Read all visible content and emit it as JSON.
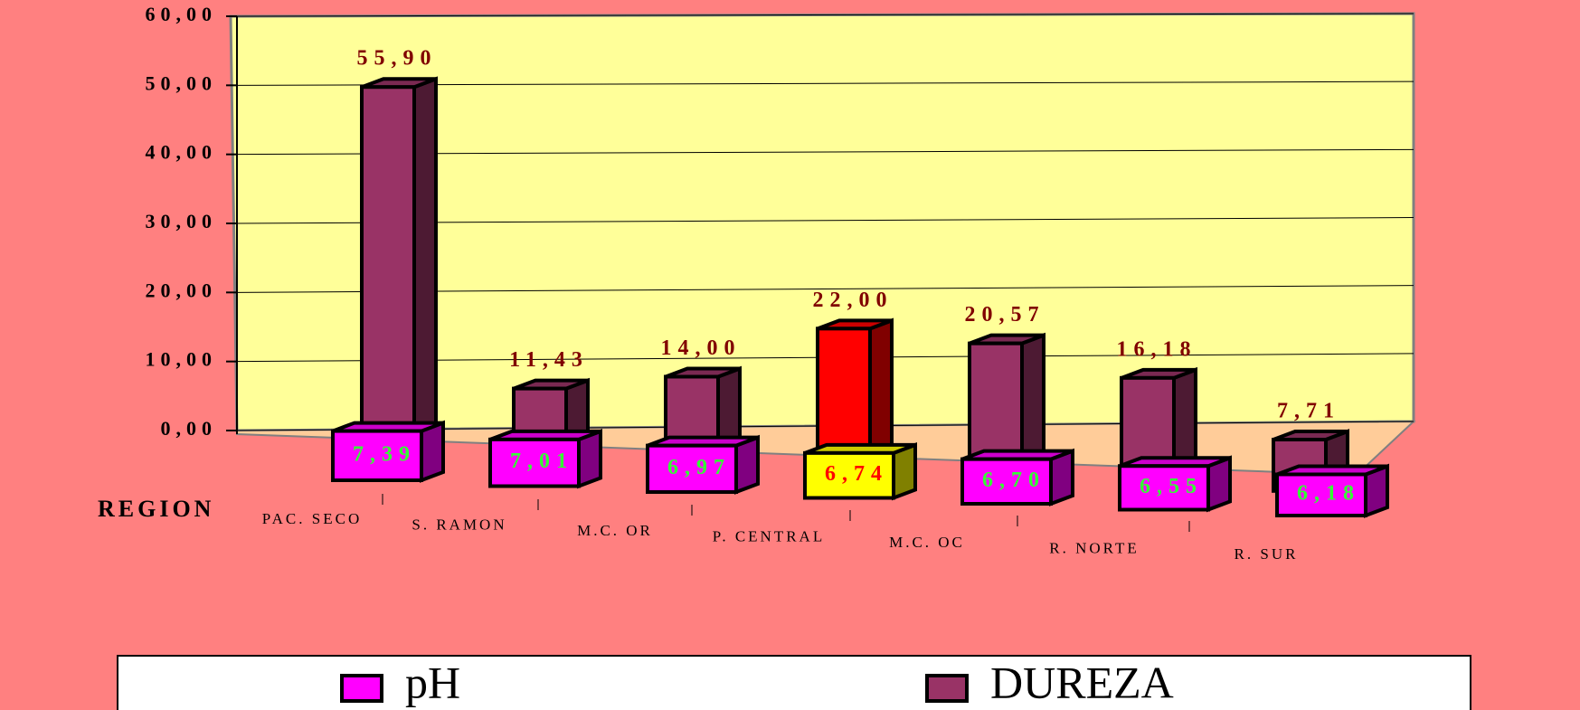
{
  "chart_data": {
    "type": "bar3d",
    "x_label": "REGION",
    "categories": [
      "PAC. SECO",
      "S. RAMON",
      "M.C. OR",
      "P. CENTRAL",
      "M.C. OC",
      "R. NORTE",
      "R. SUR"
    ],
    "series": [
      {
        "name": "pH",
        "color": "#ff00ff",
        "colors": [
          "#ff00ff",
          "#ff00ff",
          "#ff00ff",
          "#ffff00",
          "#ff00ff",
          "#ff00ff",
          "#ff00ff"
        ],
        "values": [
          7.39,
          7.01,
          6.97,
          6.74,
          6.7,
          6.55,
          6.18
        ],
        "value_labels": [
          "7,39",
          "7,01",
          "6,97",
          "6,74",
          "6,70",
          "6,55",
          "6,18"
        ],
        "label_colors": [
          "#33ff33",
          "#33ff33",
          "#33ff33",
          "#ff0000",
          "#33ff33",
          "#33ff33",
          "#33ff33"
        ]
      },
      {
        "name": "DUREZA",
        "color": "#993366",
        "colors": [
          "#993366",
          "#993366",
          "#993366",
          "#ff0000",
          "#993366",
          "#993366",
          "#993366"
        ],
        "values": [
          55.9,
          11.43,
          14.0,
          22.0,
          20.57,
          16.18,
          7.71
        ],
        "value_labels": [
          "55,90",
          "11,43",
          "14,00",
          "22,00",
          "20,57",
          "16,18",
          "7,71"
        ],
        "label_colors": [
          "#800000",
          "#800000",
          "#800000",
          "#800000",
          "#800000",
          "#800000",
          "#800000"
        ]
      }
    ],
    "ylim": [
      0,
      60
    ],
    "yticks": [
      {
        "value": 0,
        "label": "0,00"
      },
      {
        "value": 10,
        "label": "10,00"
      },
      {
        "value": 20,
        "label": "20,00"
      },
      {
        "value": 30,
        "label": "30,00"
      },
      {
        "value": 40,
        "label": "40,00"
      },
      {
        "value": 50,
        "label": "50,00"
      },
      {
        "value": 60,
        "label": "60,00"
      }
    ],
    "grid": true,
    "legend": "bottom"
  }
}
